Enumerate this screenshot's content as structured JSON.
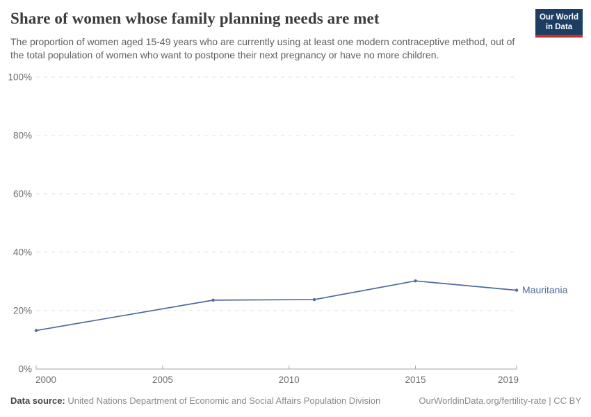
{
  "header": {
    "title": "Share of women whose family planning needs are met",
    "subtitle": "The proportion of women aged 15-49 years who are currently using at least one modern contraceptive method, out of the total population of women who want to postpone their next pregnancy or have no more children.",
    "logo": {
      "line1": "Our World",
      "line2": "in Data",
      "bg_color": "#1d3d63",
      "accent_color": "#c5302b",
      "text_color": "#ffffff"
    }
  },
  "chart_data": {
    "type": "line",
    "title": "Share of women whose family planning needs are met",
    "xlabel": "",
    "ylabel": "",
    "xlim": [
      2000,
      2019
    ],
    "ylim": [
      0,
      100
    ],
    "xticks": [
      2000,
      2005,
      2010,
      2015,
      2019
    ],
    "yticks": [
      0,
      20,
      40,
      60,
      80,
      100
    ],
    "ytick_suffix": "%",
    "grid": "horizontal-dashed",
    "legend_position": "end-of-line-label",
    "series": [
      {
        "name": "Mauritania",
        "color": "#4c6a9c",
        "x": [
          2000,
          2007,
          2011,
          2015,
          2019
        ],
        "values": [
          13.2,
          23.6,
          23.8,
          30.2,
          27.0
        ]
      }
    ]
  },
  "footer": {
    "source_label": "Data source:",
    "source_text": "United Nations Department of Economic and Social Affairs Population Division",
    "attribution": "OurWorldinData.org/fertility-rate | CC BY"
  }
}
